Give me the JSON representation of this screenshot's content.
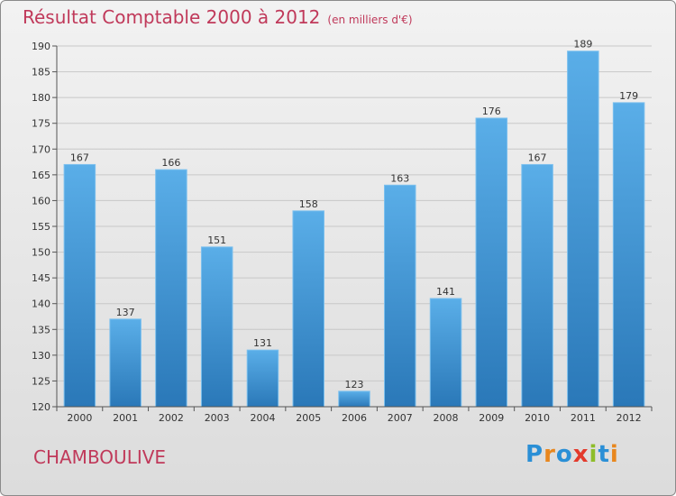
{
  "header": {
    "title": "Résultat Comptable 2000 à 2012",
    "subtitle": "(en milliers d'€)"
  },
  "footer": {
    "town": "CHAMBOULIVE",
    "logo": [
      "P",
      "r",
      "o",
      "x",
      "i",
      "t",
      "i"
    ]
  },
  "chart_data": {
    "type": "bar",
    "title": "Résultat Comptable 2000 à 2012",
    "subtitle": "(en milliers d'€)",
    "categories": [
      "2000",
      "2001",
      "2002",
      "2003",
      "2004",
      "2005",
      "2006",
      "2007",
      "2008",
      "2009",
      "2010",
      "2011",
      "2012"
    ],
    "values": [
      167,
      137,
      166,
      151,
      131,
      158,
      123,
      163,
      141,
      176,
      167,
      189,
      179
    ],
    "ylim": [
      120,
      190
    ],
    "yticks": [
      120,
      125,
      130,
      135,
      140,
      145,
      150,
      155,
      160,
      165,
      170,
      175,
      180,
      185,
      190
    ],
    "grid": true,
    "colors": {
      "bar_top": "#5aaee8",
      "bar_bottom": "#2a78b8",
      "grid": "#c8c8c8",
      "axis": "#555555"
    }
  }
}
